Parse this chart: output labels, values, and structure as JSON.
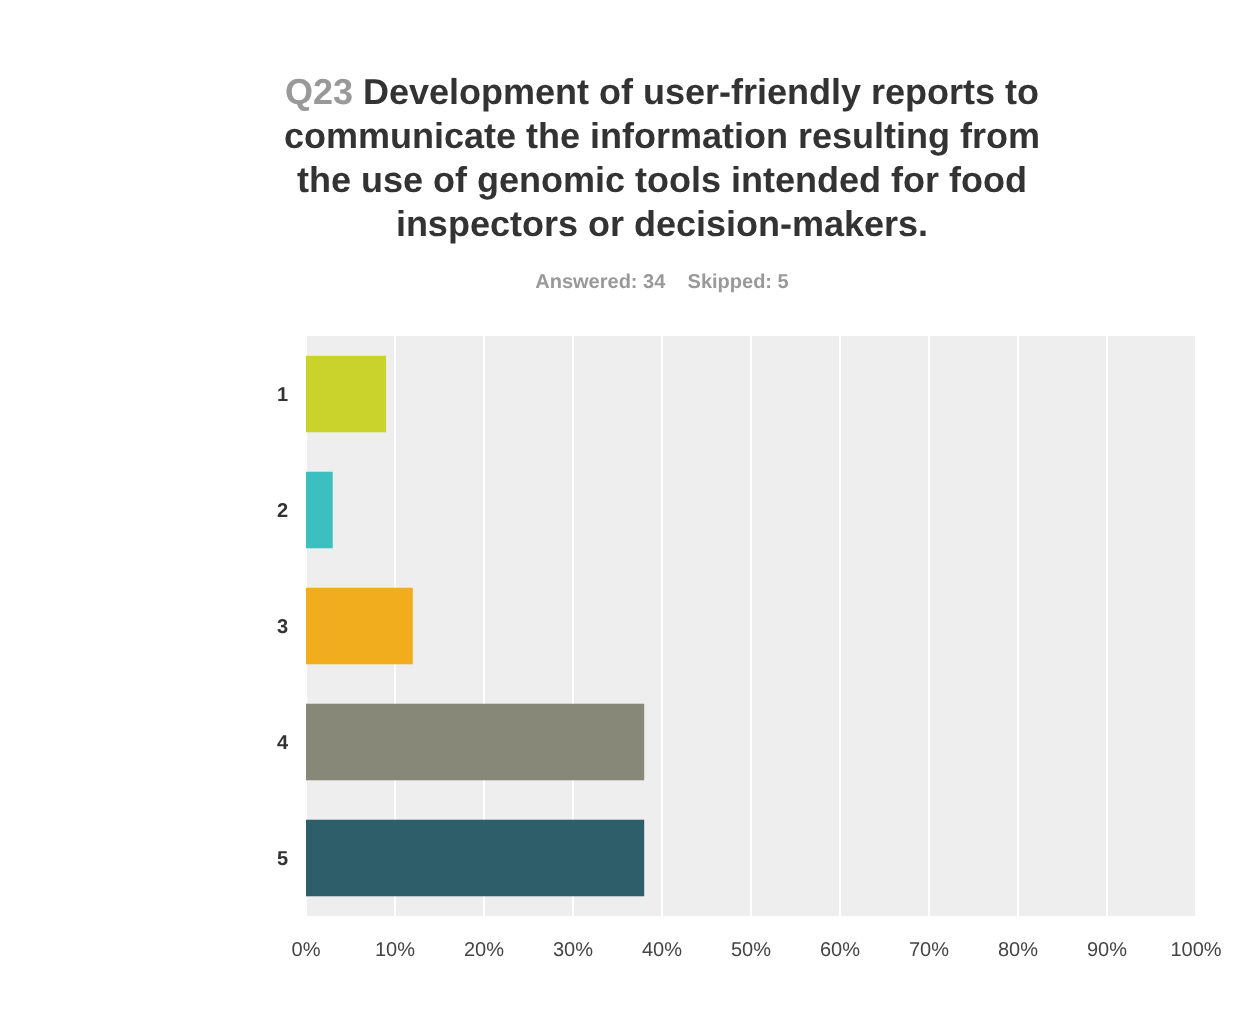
{
  "chart_data": {
    "type": "bar",
    "orientation": "horizontal",
    "title": "Q23 Development of user-friendly reports to communicate the information resulting from the use of genomic tools intended for food inspectors or decision-makers.",
    "subtitle": "Answered: 34    Skipped: 5",
    "categories": [
      "1",
      "2",
      "3",
      "4",
      "5"
    ],
    "values": [
      9,
      3,
      12,
      38,
      38
    ],
    "colors": [
      "#c9d32b",
      "#3bbfc0",
      "#f2ad1f",
      "#878878",
      "#2f5e6b"
    ],
    "xlim": [
      0,
      100
    ],
    "xticks": [
      {
        "value": 0,
        "label": "0%"
      },
      {
        "value": 10,
        "label": "10%"
      },
      {
        "value": 20,
        "label": "20%"
      },
      {
        "value": 30,
        "label": "30%"
      },
      {
        "value": 40,
        "label": "40%"
      },
      {
        "value": 50,
        "label": "50%"
      },
      {
        "value": 60,
        "label": "60%"
      },
      {
        "value": 70,
        "label": "70%"
      },
      {
        "value": 80,
        "label": "80%"
      },
      {
        "value": 90,
        "label": "90%"
      },
      {
        "value": 100,
        "label": "100%"
      }
    ],
    "grid": "x"
  }
}
